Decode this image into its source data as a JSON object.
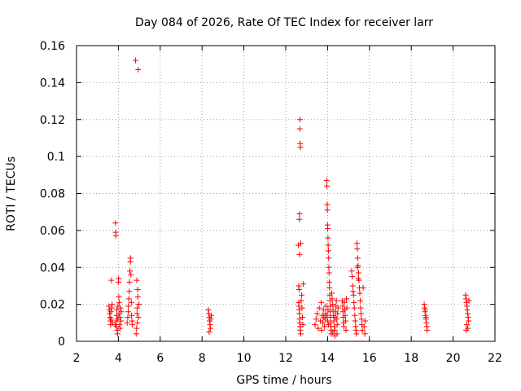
{
  "chart_data": {
    "type": "scatter",
    "title": "Day 084 of 2026, Rate Of TEC Index for receiver larr",
    "xlabel": "GPS time / hours",
    "ylabel": "ROTI / TECUs",
    "xlim": [
      2,
      22
    ],
    "ylim": [
      0,
      0.16
    ],
    "x_ticks": [
      2,
      4,
      6,
      8,
      10,
      12,
      14,
      16,
      18,
      20,
      22
    ],
    "x_tick_labels": [
      "2",
      "4",
      "6",
      "8",
      "10",
      "12",
      "14",
      "16",
      "18",
      "20",
      "22"
    ],
    "y_ticks": [
      0,
      0.02,
      0.04,
      0.06,
      0.08,
      0.1,
      0.12,
      0.14,
      0.16
    ],
    "y_tick_labels": [
      "0",
      "0.02",
      "0.04",
      "0.06",
      "0.08",
      "0.1",
      "0.12",
      "0.14",
      "0.16"
    ],
    "grid": true,
    "marker_color": "#ff0000",
    "marker": "plus",
    "series": [
      {
        "name": "ROTI",
        "points": [
          [
            3.55,
            0.019
          ],
          [
            3.57,
            0.017
          ],
          [
            3.58,
            0.015
          ],
          [
            3.6,
            0.013
          ],
          [
            3.62,
            0.011
          ],
          [
            3.63,
            0.009
          ],
          [
            3.64,
            0.016
          ],
          [
            3.66,
            0.012
          ],
          [
            3.68,
            0.018
          ],
          [
            3.7,
            0.02
          ],
          [
            3.72,
            0.01
          ],
          [
            3.66,
            0.033
          ],
          [
            3.85,
            0.009
          ],
          [
            3.86,
            0.064
          ],
          [
            3.87,
            0.059
          ],
          [
            3.88,
            0.057
          ],
          [
            3.9,
            0.008
          ],
          [
            3.91,
            0.011
          ],
          [
            3.92,
            0.014
          ],
          [
            3.93,
            0.017
          ],
          [
            3.95,
            0.006
          ],
          [
            3.96,
            0.004
          ],
          [
            3.97,
            0.012
          ],
          [
            3.98,
            0.019
          ],
          [
            4.0,
            0.032
          ],
          [
            4.01,
            0.034
          ],
          [
            4.02,
            0.024
          ],
          [
            4.03,
            0.015
          ],
          [
            4.04,
            0.021
          ],
          [
            4.06,
            0.009
          ],
          [
            4.07,
            0.013
          ],
          [
            4.08,
            0.007
          ],
          [
            4.1,
            0.018
          ],
          [
            4.12,
            0.011
          ],
          [
            4.14,
            0.016
          ],
          [
            4.42,
            0.01
          ],
          [
            4.45,
            0.013
          ],
          [
            4.47,
            0.016
          ],
          [
            4.48,
            0.019
          ],
          [
            4.5,
            0.023
          ],
          [
            4.52,
            0.027
          ],
          [
            4.53,
            0.032
          ],
          [
            4.55,
            0.038
          ],
          [
            4.57,
            0.043
          ],
          [
            4.58,
            0.045
          ],
          [
            4.6,
            0.036
          ],
          [
            4.62,
            0.021
          ],
          [
            4.63,
            0.014
          ],
          [
            4.65,
            0.011
          ],
          [
            4.67,
            0.009
          ],
          [
            4.82,
            0.152
          ],
          [
            4.88,
            0.033
          ],
          [
            4.92,
            0.028
          ],
          [
            4.93,
            0.024
          ],
          [
            4.9,
            0.018
          ],
          [
            4.95,
            0.147
          ],
          [
            4.96,
            0.013
          ],
          [
            4.98,
            0.02
          ],
          [
            4.85,
            0.004
          ],
          [
            4.87,
            0.007
          ],
          [
            4.89,
            0.015
          ],
          [
            4.91,
            0.01
          ],
          [
            8.3,
            0.017
          ],
          [
            8.32,
            0.015
          ],
          [
            8.35,
            0.013
          ],
          [
            8.36,
            0.011
          ],
          [
            8.38,
            0.009
          ],
          [
            8.4,
            0.007
          ],
          [
            8.34,
            0.005
          ],
          [
            8.42,
            0.012
          ],
          [
            8.44,
            0.014
          ],
          [
            12.6,
            0.052
          ],
          [
            12.62,
            0.03
          ],
          [
            12.64,
            0.028
          ],
          [
            12.65,
            0.066
          ],
          [
            12.66,
            0.069
          ],
          [
            12.67,
            0.115
          ],
          [
            12.68,
            0.12
          ],
          [
            12.69,
            0.107
          ],
          [
            12.7,
            0.105
          ],
          [
            12.66,
            0.047
          ],
          [
            12.72,
            0.053
          ],
          [
            12.62,
            0.021
          ],
          [
            12.63,
            0.019
          ],
          [
            12.64,
            0.017
          ],
          [
            12.65,
            0.015
          ],
          [
            12.66,
            0.012
          ],
          [
            12.67,
            0.01
          ],
          [
            12.68,
            0.008
          ],
          [
            12.7,
            0.006
          ],
          [
            12.72,
            0.004
          ],
          [
            12.74,
            0.022
          ],
          [
            12.76,
            0.025
          ],
          [
            12.78,
            0.018
          ],
          [
            12.8,
            0.013
          ],
          [
            12.82,
            0.009
          ],
          [
            12.84,
            0.031
          ],
          [
            13.4,
            0.009
          ],
          [
            13.45,
            0.012
          ],
          [
            13.5,
            0.015
          ],
          [
            13.55,
            0.007
          ],
          [
            13.6,
            0.018
          ],
          [
            13.65,
            0.011
          ],
          [
            13.7,
            0.021
          ],
          [
            13.72,
            0.006
          ],
          [
            13.75,
            0.014
          ],
          [
            13.78,
            0.01
          ],
          [
            13.8,
            0.017
          ],
          [
            13.82,
            0.013
          ],
          [
            13.85,
            0.008
          ],
          [
            13.88,
            0.012
          ],
          [
            13.9,
            0.015
          ],
          [
            13.92,
            0.019
          ],
          [
            13.95,
            0.087
          ],
          [
            13.97,
            0.084
          ],
          [
            13.98,
            0.074
          ],
          [
            13.99,
            0.071
          ],
          [
            14.0,
            0.063
          ],
          [
            14.01,
            0.061
          ],
          [
            14.02,
            0.056
          ],
          [
            14.03,
            0.052
          ],
          [
            14.04,
            0.049
          ],
          [
            14.05,
            0.045
          ],
          [
            14.06,
            0.04
          ],
          [
            14.07,
            0.037
          ],
          [
            14.08,
            0.032
          ],
          [
            14.09,
            0.029
          ],
          [
            14.1,
            0.025
          ],
          [
            14.11,
            0.022
          ],
          [
            14.12,
            0.019
          ],
          [
            14.13,
            0.016
          ],
          [
            14.14,
            0.013
          ],
          [
            14.15,
            0.01
          ],
          [
            14.16,
            0.008
          ],
          [
            14.17,
            0.006
          ],
          [
            14.18,
            0.004
          ],
          [
            14.0,
            0.011
          ],
          [
            13.98,
            0.014
          ],
          [
            14.02,
            0.017
          ],
          [
            14.04,
            0.009
          ],
          [
            14.2,
            0.026
          ],
          [
            14.22,
            0.023
          ],
          [
            14.24,
            0.02
          ],
          [
            14.26,
            0.017
          ],
          [
            14.28,
            0.014
          ],
          [
            14.3,
            0.011
          ],
          [
            14.32,
            0.008
          ],
          [
            14.34,
            0.006
          ],
          [
            14.36,
            0.013
          ],
          [
            14.38,
            0.016
          ],
          [
            14.4,
            0.019
          ],
          [
            14.42,
            0.022
          ],
          [
            14.44,
            0.012
          ],
          [
            14.46,
            0.009
          ],
          [
            14.48,
            0.015
          ],
          [
            14.5,
            0.018
          ],
          [
            14.25,
            0.005
          ],
          [
            14.35,
            0.003
          ],
          [
            14.45,
            0.004
          ],
          [
            14.7,
            0.022
          ],
          [
            14.72,
            0.019
          ],
          [
            14.74,
            0.016
          ],
          [
            14.75,
            0.013
          ],
          [
            14.76,
            0.01
          ],
          [
            14.78,
            0.008
          ],
          [
            14.8,
            0.021
          ],
          [
            14.82,
            0.017
          ],
          [
            14.84,
            0.014
          ],
          [
            14.86,
            0.011
          ],
          [
            14.88,
            0.006
          ],
          [
            14.9,
            0.023
          ],
          [
            14.92,
            0.018
          ],
          [
            15.15,
            0.038
          ],
          [
            15.18,
            0.035
          ],
          [
            15.2,
            0.03
          ],
          [
            15.22,
            0.027
          ],
          [
            15.24,
            0.025
          ],
          [
            15.26,
            0.021
          ],
          [
            15.28,
            0.018
          ],
          [
            15.3,
            0.014
          ],
          [
            15.32,
            0.011
          ],
          [
            15.34,
            0.008
          ],
          [
            15.36,
            0.006
          ],
          [
            15.38,
            0.004
          ],
          [
            15.4,
            0.053
          ],
          [
            15.42,
            0.05
          ],
          [
            15.44,
            0.045
          ],
          [
            15.46,
            0.041
          ],
          [
            15.48,
            0.037
          ],
          [
            15.5,
            0.033
          ],
          [
            15.52,
            0.029
          ],
          [
            15.54,
            0.026
          ],
          [
            15.56,
            0.022
          ],
          [
            15.58,
            0.018
          ],
          [
            15.6,
            0.015
          ],
          [
            15.62,
            0.012
          ],
          [
            15.64,
            0.009
          ],
          [
            15.66,
            0.006
          ],
          [
            15.43,
            0.04
          ],
          [
            15.47,
            0.034
          ],
          [
            15.7,
            0.029
          ],
          [
            15.75,
            0.008
          ],
          [
            15.78,
            0.004
          ],
          [
            15.8,
            0.011
          ],
          [
            18.62,
            0.02
          ],
          [
            18.64,
            0.018
          ],
          [
            18.66,
            0.016
          ],
          [
            18.68,
            0.014
          ],
          [
            18.7,
            0.012
          ],
          [
            18.72,
            0.01
          ],
          [
            18.74,
            0.008
          ],
          [
            18.76,
            0.006
          ],
          [
            18.66,
            0.017
          ],
          [
            18.7,
            0.013
          ],
          [
            20.6,
            0.025
          ],
          [
            20.62,
            0.023
          ],
          [
            20.64,
            0.021
          ],
          [
            20.66,
            0.019
          ],
          [
            20.68,
            0.017
          ],
          [
            20.7,
            0.015
          ],
          [
            20.72,
            0.013
          ],
          [
            20.74,
            0.011
          ],
          [
            20.66,
            0.009
          ],
          [
            20.7,
            0.007
          ],
          [
            20.76,
            0.022
          ],
          [
            20.62,
            0.006
          ]
        ]
      }
    ]
  }
}
